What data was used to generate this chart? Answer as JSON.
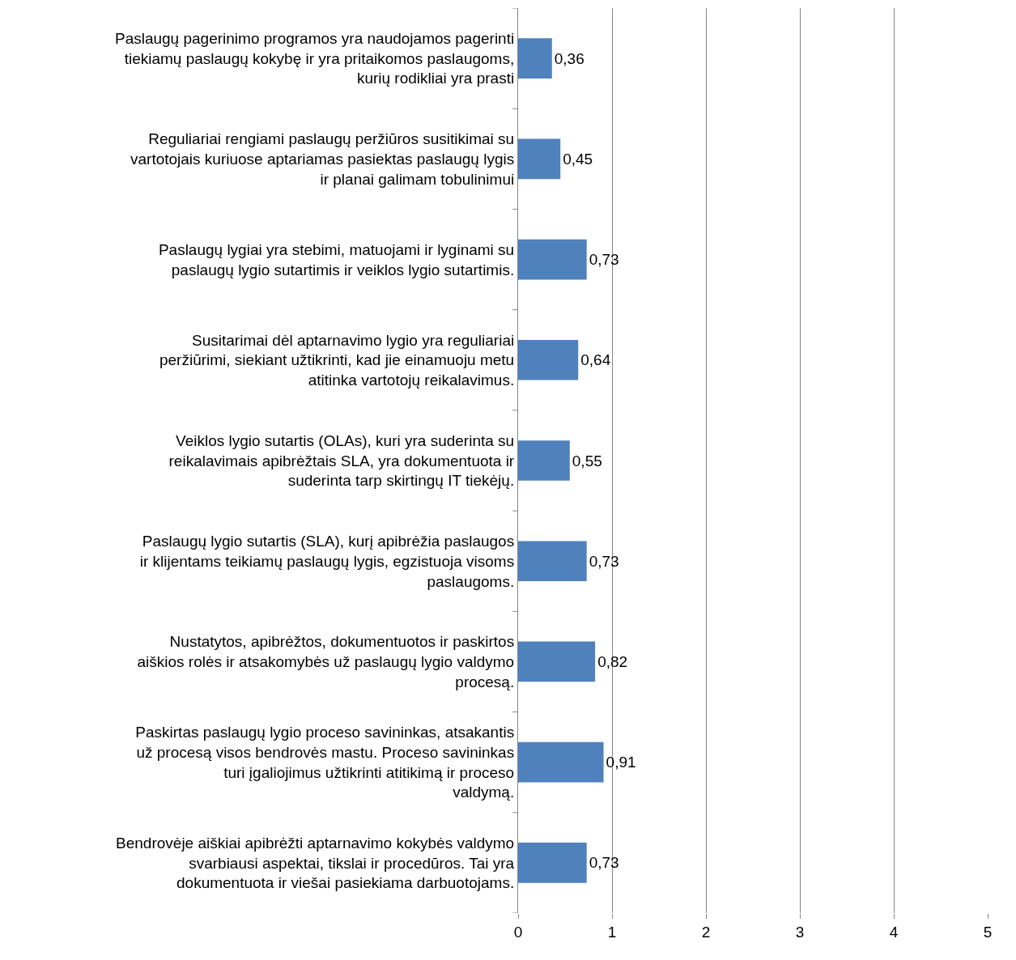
{
  "chart_data": {
    "type": "bar",
    "orientation": "horizontal",
    "categories": [
      "Paslaugų pagerinimo programos yra naudojamos pagerinti tiekiamų paslaugų kokybę ir yra pritaikomos paslaugoms, kurių rodikliai yra prasti",
      "Reguliariai rengiami paslaugų peržiūros susitikimai su vartotojais kuriuose aptariamas pasiektas paslaugų lygis ir planai galimam tobulinimui",
      "Paslaugų lygiai yra stebimi, matuojami ir lyginami su paslaugų lygio sutartimis ir veiklos lygio sutartimis.",
      "Susitarimai dėl aptarnavimo lygio yra reguliariai peržiūrimi, siekiant užtikrinti, kad jie einamuoju metu atitinka vartotojų reikalavimus.",
      "Veiklos lygio sutartis (OLAs), kuri yra suderinta su reikalavimais apibrėžtais SLA, yra dokumentuota ir suderinta tarp skirtingų IT tiekėjų.",
      "Paslaugų lygio sutartis (SLA), kurį apibrėžia paslaugos ir klijentams teikiamų paslaugų lygis, egzistuoja visoms paslaugoms.",
      "Nustatytos, apibrėžtos, dokumentuotos ir paskirtos aiškios rolės ir atsakomybės už paslaugų lygio valdymo procesą.",
      "Paskirtas paslaugų lygio proceso savininkas, atsakantis už procesą visos bendrovės mastu. Proceso savininkas turi įgaliojimus užtikrinti atitikimą ir proceso valdymą.",
      "Bendrovėje aiškiai apibrėžti aptarnavimo kokybės valdymo svarbiausi aspektai, tikslai ir procedūros. Tai yra dokumentuota ir viešai pasiekiama darbuotojams."
    ],
    "values": [
      0.36,
      0.45,
      0.73,
      0.64,
      0.55,
      0.73,
      0.82,
      0.91,
      0.73
    ],
    "value_labels": [
      "0,36",
      "0,45",
      "0,73",
      "0,64",
      "0,55",
      "0,73",
      "0,82",
      "0,91",
      "0,73"
    ],
    "color": "#4f81bd",
    "xlim": [
      0,
      5
    ],
    "xticks": [
      0,
      1,
      2,
      3,
      4,
      5
    ],
    "grid": "x",
    "legend": false
  }
}
